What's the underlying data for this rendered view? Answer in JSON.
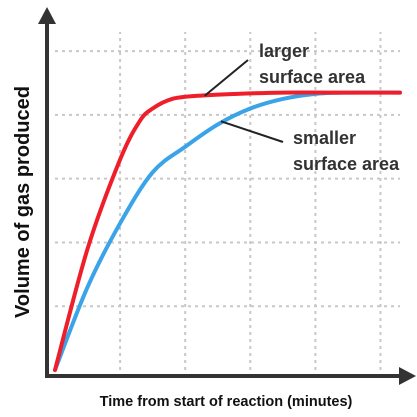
{
  "chart_data": {
    "type": "line",
    "title": "",
    "xlabel": "Time from start of reaction (minutes)",
    "ylabel": "Volume of gas produced",
    "xlim": [
      0,
      5.3
    ],
    "ylim": [
      0,
      5.3
    ],
    "grid": true,
    "grid_style": "dotted",
    "show_tick_labels": false,
    "series": [
      {
        "name": "larger surface area",
        "color": "#ee1f2a",
        "x": [
          0,
          0.5,
          1.0,
          1.3,
          1.5,
          1.8,
          2.2,
          2.8,
          3.5,
          4.2,
          5.3
        ],
        "y": [
          0,
          1.9,
          3.3,
          3.9,
          4.1,
          4.25,
          4.3,
          4.33,
          4.35,
          4.35,
          4.35
        ]
      },
      {
        "name": "smaller surface area",
        "color": "#3ba3e8",
        "x": [
          0,
          0.5,
          1.0,
          1.5,
          2.0,
          2.5,
          3.0,
          3.5,
          4.0,
          4.5,
          5.3
        ],
        "y": [
          0,
          1.3,
          2.3,
          3.1,
          3.5,
          3.85,
          4.1,
          4.25,
          4.33,
          4.35,
          4.35
        ]
      }
    ],
    "annotations": [
      {
        "lines": [
          "larger",
          "surface area"
        ],
        "series": "larger surface area",
        "pointer_at": [
          2.3,
          4.3
        ]
      },
      {
        "lines": [
          "smaller",
          "surface area"
        ],
        "series": "smaller surface area",
        "pointer_at": [
          2.55,
          3.9
        ]
      }
    ]
  }
}
